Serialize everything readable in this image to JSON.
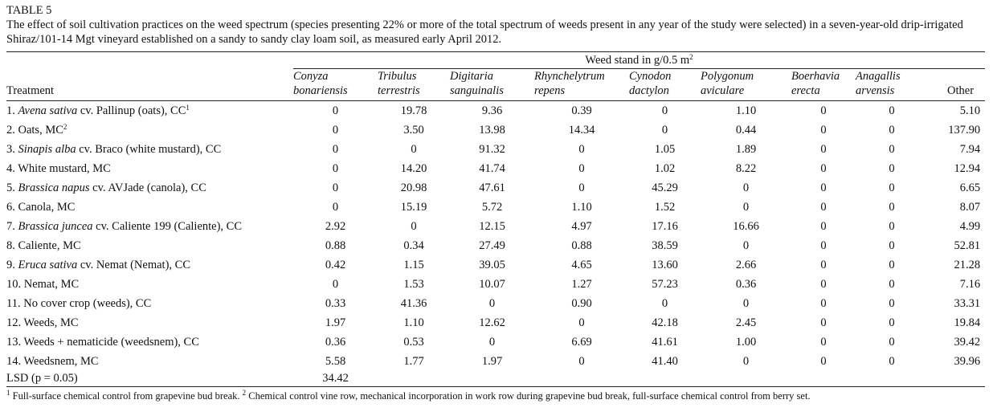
{
  "table_label": "TABLE 5",
  "caption": "The effect of soil cultivation practices on the weed spectrum (species presenting 22% or more of the total spectrum of weeds present in any year of the study were selected) in a seven-year-old drip-irrigated Shiraz/101-14 Mgt vineyard established on a sandy to sandy clay loam soil, as measured early April 2012.",
  "table": {
    "group_header": {
      "text": "Weed stand in g/0.5 m",
      "sup": "2"
    },
    "treatment_header": "Treatment",
    "species": [
      [
        "Conyza",
        "bonariensis"
      ],
      [
        "Tribulus",
        "terrestris"
      ],
      [
        "Digitaria",
        "sanguinalis"
      ],
      [
        "Rhynchelytrum",
        "repens"
      ],
      [
        "Cynodon",
        "dactylon"
      ],
      [
        "Polygonum",
        "aviculare"
      ],
      [
        "Boerhavia",
        "erecta"
      ],
      [
        "Anagallis",
        "arvensis"
      ]
    ],
    "other_header": "Other",
    "rows": [
      {
        "treatment": {
          "number": "1.",
          "latin": "Avena sativa",
          "rest": "cv. Pallinup (oats), CC",
          "note": "1"
        },
        "values": [
          "0",
          "19.78",
          "9.36",
          "0.39",
          "0",
          "1.10",
          "0",
          "0",
          "5.10"
        ]
      },
      {
        "treatment": {
          "number": "2.",
          "rest": "Oats, MC",
          "note": "2"
        },
        "values": [
          "0",
          "3.50",
          "13.98",
          "14.34",
          "0",
          "0.44",
          "0",
          "0",
          "137.90"
        ]
      },
      {
        "treatment": {
          "number": "3.",
          "latin": "Sinapis alba",
          "rest": "cv. Braco (white mustard), CC"
        },
        "values": [
          "0",
          "0",
          "91.32",
          "0",
          "1.05",
          "1.89",
          "0",
          "0",
          "7.94"
        ]
      },
      {
        "treatment": {
          "number": "4.",
          "rest": "White mustard, MC"
        },
        "values": [
          "0",
          "14.20",
          "41.74",
          "0",
          "1.02",
          "8.22",
          "0",
          "0",
          "12.94"
        ]
      },
      {
        "treatment": {
          "number": "5.",
          "latin": "Brassica napus",
          "rest": "cv. AVJade (canola), CC"
        },
        "values": [
          "0",
          "20.98",
          "47.61",
          "0",
          "45.29",
          "0",
          "0",
          "0",
          "6.65"
        ]
      },
      {
        "treatment": {
          "number": "6.",
          "rest": "Canola, MC"
        },
        "values": [
          "0",
          "15.19",
          "5.72",
          "1.10",
          "1.52",
          "0",
          "0",
          "0",
          "8.07"
        ]
      },
      {
        "treatment": {
          "number": "7.",
          "latin": "Brassica juncea",
          "rest": "cv. Caliente 199 (Caliente), CC"
        },
        "values": [
          "2.92",
          "0",
          "12.15",
          "4.97",
          "17.16",
          "16.66",
          "0",
          "0",
          "4.99"
        ]
      },
      {
        "treatment": {
          "number": "8.",
          "rest": "Caliente, MC"
        },
        "values": [
          "0.88",
          "0.34",
          "27.49",
          "0.88",
          "38.59",
          "0",
          "0",
          "0",
          "52.81"
        ]
      },
      {
        "treatment": {
          "number": "9.",
          "latin": "Eruca sativa",
          "rest": "cv. Nemat (Nemat), CC"
        },
        "values": [
          "0.42",
          "1.15",
          "39.05",
          "4.65",
          "13.60",
          "2.66",
          "0",
          "0",
          "21.28"
        ]
      },
      {
        "treatment": {
          "number": "10.",
          "rest": "Nemat, MC"
        },
        "values": [
          "0",
          "1.53",
          "10.07",
          "1.27",
          "57.23",
          "0.36",
          "0",
          "0",
          "7.16"
        ]
      },
      {
        "treatment": {
          "number": "11.",
          "rest": "No cover crop (weeds), CC"
        },
        "values": [
          "0.33",
          "41.36",
          "0",
          "0.90",
          "0",
          "0",
          "0",
          "0",
          "33.31"
        ]
      },
      {
        "treatment": {
          "number": "12.",
          "rest": "Weeds, MC"
        },
        "values": [
          "1.97",
          "1.10",
          "12.62",
          "0",
          "42.18",
          "2.45",
          "0",
          "0",
          "19.84"
        ]
      },
      {
        "treatment": {
          "number": "13.",
          "rest": "Weeds + nematicide (weedsnem), CC"
        },
        "values": [
          "0.36",
          "0.53",
          "0",
          "6.69",
          "41.61",
          "1.00",
          "0",
          "0",
          "39.42"
        ]
      },
      {
        "treatment": {
          "number": "14.",
          "rest": "Weedsnem, MC"
        },
        "values": [
          "5.58",
          "1.77",
          "1.97",
          "0",
          "41.40",
          "0",
          "0",
          "0",
          "39.96"
        ]
      }
    ],
    "lsd": {
      "label": "LSD (p = 0.05)",
      "value": "34.42"
    }
  },
  "footnotes": [
    {
      "mark": "1",
      "text": "Full-surface chemical control from grapevine bud break."
    },
    {
      "mark": "2",
      "text": "Chemical control vine row, mechanical incorporation in work row during grapevine bud break, full-surface chemical control from berry set."
    }
  ]
}
